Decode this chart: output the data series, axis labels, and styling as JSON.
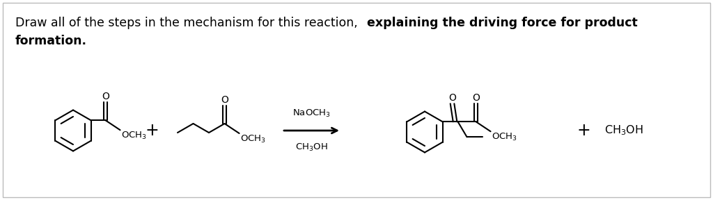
{
  "background_color": "#ffffff",
  "border_color": "#bbbbbb",
  "fig_width": 10.24,
  "fig_height": 2.88,
  "title_normal": "Draw all of the steps in the mechanism for this reaction, ",
  "title_bold1": "explaining the driving force for product",
  "title_bold2": "formation.",
  "font_size_title": 12.5,
  "font_size_chem": 10.0,
  "font_size_label": 9.5
}
